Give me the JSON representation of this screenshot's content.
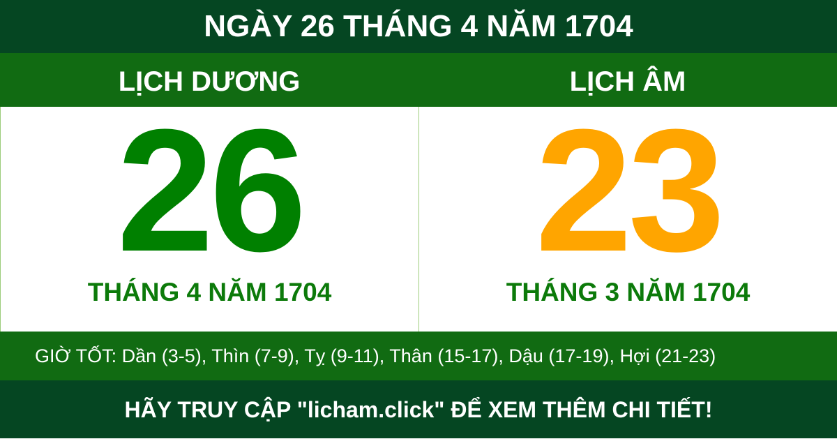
{
  "title": "NGÀY 26 THÁNG 4 NĂM 1704",
  "solar": {
    "label": "LỊCH DƯƠNG",
    "day": "26",
    "month_year": "THÁNG 4 NĂM 1704",
    "color": "#008000"
  },
  "lunar": {
    "label": "LỊCH ÂM",
    "day": "23",
    "month_year": "THÁNG 3 NĂM 1704",
    "color": "#FFA500"
  },
  "good_hours": "GIỜ TỐT: Dần (3-5), Thìn (7-9), Tỵ (9-11), Thân (15-17), Dậu (17-19), Hợi (21-23)",
  "footer": "HÃY TRUY CẬP \"licham.click\" ĐỂ XEM THÊM CHI TIẾT!",
  "colors": {
    "dark_green": "#054622",
    "green": "#116B12"
  }
}
